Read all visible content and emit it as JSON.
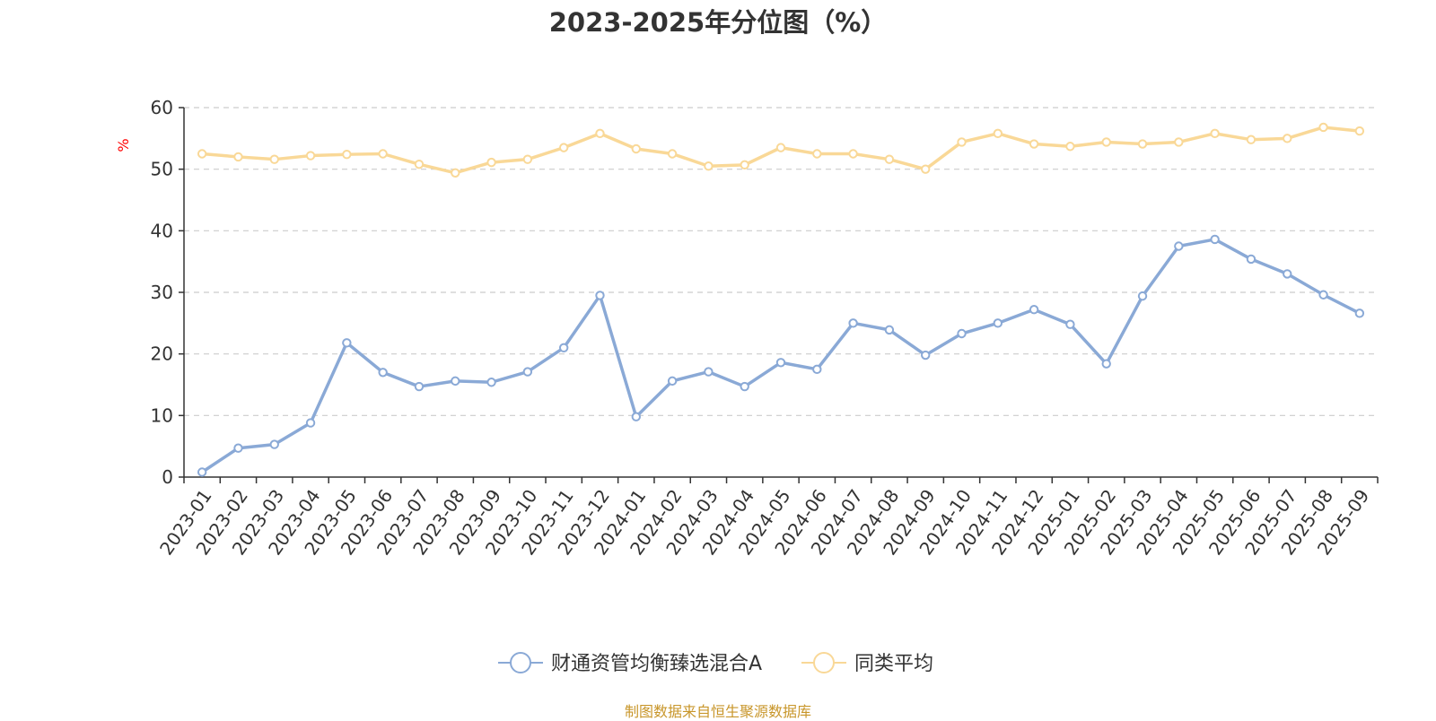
{
  "chart_data": {
    "type": "line",
    "title": "2023-2025年分位图（%）",
    "ylabel": "%",
    "ylim": [
      0,
      60
    ],
    "yticks": [
      0,
      10,
      20,
      30,
      40,
      50,
      60
    ],
    "grid": true,
    "legend_position": "bottom",
    "categories": [
      "2023-01",
      "2023-02",
      "2023-03",
      "2023-04",
      "2023-05",
      "2023-06",
      "2023-07",
      "2023-08",
      "2023-09",
      "2023-10",
      "2023-11",
      "2023-12",
      "2024-01",
      "2024-02",
      "2024-03",
      "2024-04",
      "2024-05",
      "2024-06",
      "2024-07",
      "2024-08",
      "2024-09",
      "2024-10",
      "2024-11",
      "2024-12",
      "2025-01",
      "2025-02",
      "2025-03",
      "2025-04",
      "2025-05",
      "2025-06",
      "2025-07",
      "2025-08",
      "2025-09"
    ],
    "series": [
      {
        "name": "财通资管均衡臻选混合A",
        "color": "#8aa9d6",
        "values": [
          0.8,
          4.7,
          5.3,
          8.8,
          21.8,
          17.0,
          14.7,
          15.6,
          15.4,
          17.1,
          21.0,
          29.5,
          9.8,
          15.6,
          17.1,
          14.7,
          18.6,
          17.5,
          25.0,
          23.9,
          19.8,
          23.3,
          25.0,
          27.2,
          24.8,
          18.4,
          29.4,
          37.5,
          38.6,
          35.4,
          33.0,
          29.6,
          26.6
        ]
      },
      {
        "name": "同类平均",
        "color": "#f9d897",
        "values": [
          52.5,
          52.0,
          51.6,
          52.2,
          52.4,
          52.5,
          50.8,
          49.4,
          51.1,
          51.6,
          53.5,
          55.8,
          53.3,
          52.5,
          50.5,
          50.7,
          53.5,
          52.5,
          52.5,
          51.6,
          50.0,
          54.4,
          55.8,
          54.1,
          53.7,
          54.4,
          54.1,
          54.4,
          55.8,
          54.8,
          55.0,
          56.8,
          56.2
        ]
      }
    ]
  },
  "source_note": "制图数据来自恒生聚源数据库"
}
